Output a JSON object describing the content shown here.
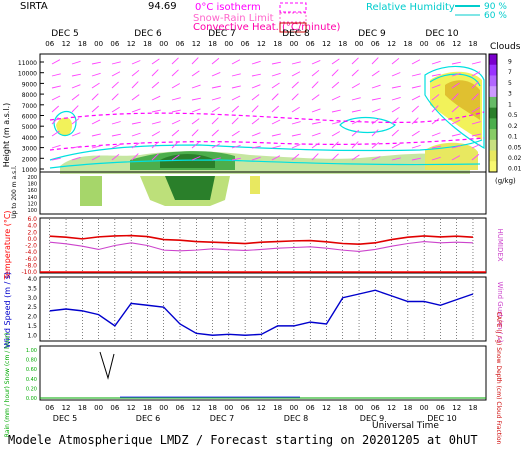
{
  "header": {
    "station": "SIRTA",
    "station_alt_value": "94.69",
    "legend_isotherm": "0°C isotherm",
    "legend_snowrain": "Snow-Rain Limit",
    "legend_convective": "Convective Heat. (°C/minute)",
    "legend_humidity": "Relative Humidity",
    "humidity_90": "90 %",
    "humidity_60": "60 %"
  },
  "time_axis": {
    "days": [
      "DEC  5",
      "DEC  6",
      "DEC  7",
      "DEC  8",
      "DEC  9",
      "DEC 10"
    ],
    "hours": [
      "06",
      "12",
      "18",
      "00",
      "06",
      "12",
      "18",
      "00",
      "06",
      "12",
      "18",
      "00",
      "06",
      "12",
      "18",
      "00",
      "06",
      "12",
      "18",
      "00",
      "06",
      "12",
      "18",
      "00",
      "06",
      "12",
      "18"
    ],
    "universal_time": "Universal Time"
  },
  "panel1": {
    "y_label": "Height  (m a.s.l.)",
    "y_ticks_upper": [
      "11000",
      "10000",
      "9000",
      "8000",
      "7000",
      "6000",
      "5000",
      "4000",
      "3000",
      "2000",
      "1000"
    ],
    "y_label_lower": "Up to 200 m a.s.l.",
    "y_ticks_lower": [
      "200",
      "180",
      "160",
      "140",
      "120",
      "100"
    ],
    "clouds_title": "Clouds",
    "clouds_ticks": [
      "9",
      "7",
      "5",
      "3",
      "1",
      "0.5",
      "0.2",
      "0.1",
      "0.05",
      "0.02",
      "0.01"
    ],
    "clouds_unit": "(g/kg)"
  },
  "panel2": {
    "y_label": "Temperature (°C)",
    "y_ticks": [
      "6.0",
      "4.0",
      "2.0",
      "0.0",
      "-2.0",
      "-4.0",
      "-6.0",
      "-8.0",
      "-10.0"
    ],
    "right_label": "HUMIDEX"
  },
  "panel3": {
    "y_label": "Wind Speed (m / s)",
    "y_ticks": [
      "4.0",
      "3.5",
      "3.0",
      "2.5",
      "2.0",
      "1.5",
      "1.0"
    ],
    "right_label": "Wind Gust (m / s)"
  },
  "panel4": {
    "y_label": "Rain (mm / hour)  Snow (cm / hour)",
    "y_ticks": [
      "1.00",
      "0.80",
      "0.60",
      "0.40",
      "0.20",
      "0.00"
    ],
    "right_label": "CAPE (J / g)  Snow Depth (cm)  Cloud Fraction"
  },
  "footer": {
    "caption": "Modele Atmospherique LMDZ / Forecast starting on 20201205 at 0hUT"
  },
  "chart_data": [
    {
      "type": "line",
      "title": "Temperature",
      "series": [
        {
          "name": "Temperature",
          "values": [
            0.8,
            0.5,
            0.0,
            0.6,
            0.9,
            1.0,
            0.7,
            -0.2,
            -0.4,
            -0.8,
            -1.0,
            -1.2,
            -1.4,
            -1.0,
            -0.8,
            -0.6,
            -0.5,
            -0.9,
            -1.4,
            -1.6,
            -1.2,
            -0.2,
            0.5,
            0.9,
            0.6,
            0.8,
            0.5
          ]
        },
        {
          "name": "HUMIDEX",
          "values": [
            -1.0,
            -1.5,
            -2.2,
            -3.2,
            -2.0,
            -1.2,
            -2.0,
            -3.4,
            -3.6,
            -3.4,
            -3.0,
            -3.3,
            -3.5,
            -3.2,
            -2.8,
            -2.6,
            -2.4,
            -2.8,
            -3.4,
            -3.8,
            -3.2,
            -2.2,
            -1.4,
            -0.8,
            -1.2,
            -1.0,
            -1.2
          ]
        }
      ],
      "ylim": [
        -10,
        6
      ]
    },
    {
      "type": "line",
      "title": "Wind Speed",
      "series": [
        {
          "name": "Wind Speed",
          "values": [
            2.3,
            2.4,
            2.3,
            2.1,
            1.5,
            2.7,
            2.6,
            2.5,
            1.6,
            1.1,
            1.0,
            1.05,
            1.0,
            1.05,
            1.5,
            1.5,
            1.7,
            1.6,
            3.0,
            3.2,
            3.4,
            3.1,
            2.8,
            2.8,
            2.6,
            2.9,
            3.2
          ]
        }
      ],
      "ylim": [
        0.8,
        4.0
      ]
    }
  ]
}
